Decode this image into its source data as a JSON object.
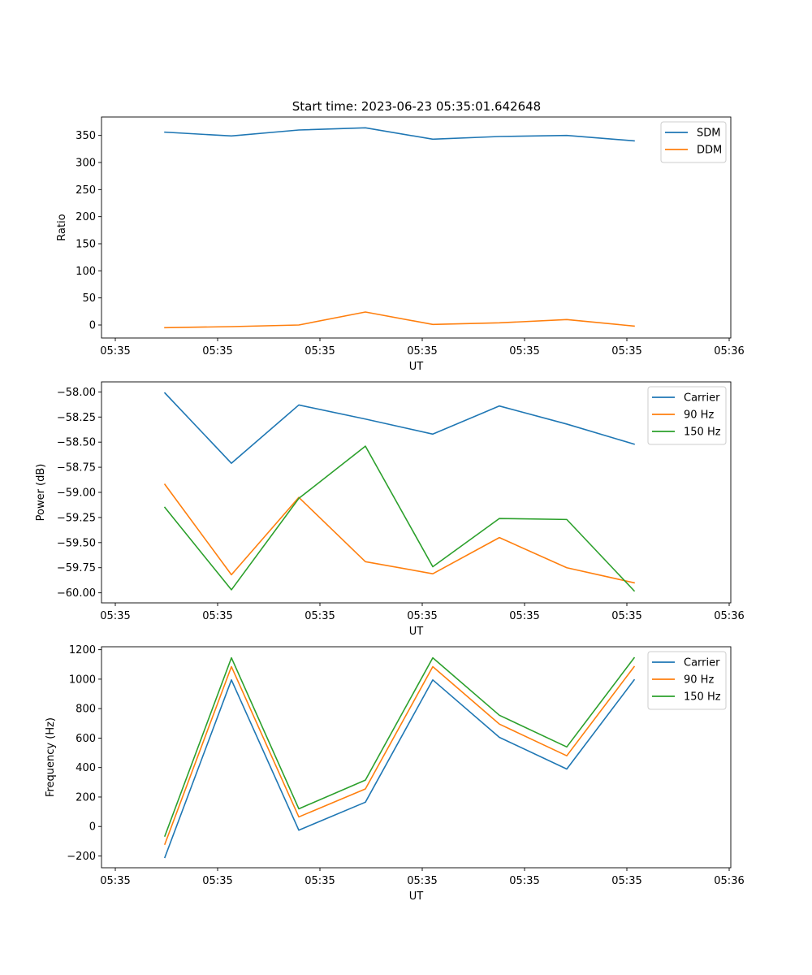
{
  "figure": {
    "title": "Start time: 2023-06-23 05:35:01.642648"
  },
  "chart_data": [
    {
      "type": "line",
      "title": "Start time: 2023-06-23 05:35:01.642648",
      "xlabel": "UT",
      "ylabel": "Ratio",
      "x_tick_labels": [
        "05:35",
        "05:35",
        "05:35",
        "05:35",
        "05:35",
        "05:35",
        "05:36"
      ],
      "y_ticks": [
        0,
        50,
        100,
        150,
        200,
        250,
        300,
        350
      ],
      "ylim": [
        -24,
        384
      ],
      "legend_position": "top-right",
      "grid": false,
      "x": [
        1,
        2,
        3,
        4,
        5,
        6,
        7,
        8
      ],
      "series": [
        {
          "name": "SDM",
          "color": "#1f77b4",
          "values": [
            356,
            349,
            360,
            364,
            343,
            348,
            350,
            340
          ]
        },
        {
          "name": "DDM",
          "color": "#ff7f0e",
          "values": [
            -5,
            -3,
            0,
            24,
            1,
            4,
            10,
            -2
          ]
        }
      ]
    },
    {
      "type": "line",
      "title": "",
      "xlabel": "UT",
      "ylabel": "Power (dB)",
      "x_tick_labels": [
        "05:35",
        "05:35",
        "05:35",
        "05:35",
        "05:35",
        "05:35",
        "05:36"
      ],
      "y_ticks": [
        -60.0,
        -59.75,
        -59.5,
        -59.25,
        -59.0,
        -58.75,
        -58.5,
        -58.25,
        -58.0
      ],
      "y_tick_labels": [
        "−60.00",
        "−59.75",
        "−59.50",
        "−59.25",
        "−59.00",
        "−58.75",
        "−58.50",
        "−58.25",
        "−58.00"
      ],
      "ylim": [
        -60.1,
        -57.9
      ],
      "legend_position": "top-right",
      "grid": false,
      "x": [
        1,
        2,
        3,
        4,
        5,
        6,
        7,
        8
      ],
      "series": [
        {
          "name": "Carrier",
          "color": "#1f77b4",
          "values": [
            -58.01,
            -58.71,
            -58.13,
            -58.27,
            -58.42,
            -58.14,
            -58.32,
            -58.52
          ]
        },
        {
          "name": "90 Hz",
          "color": "#ff7f0e",
          "values": [
            -58.92,
            -59.82,
            -59.05,
            -59.69,
            -59.81,
            -59.45,
            -59.75,
            -59.9
          ]
        },
        {
          "name": "150 Hz",
          "color": "#2ca02c",
          "values": [
            -59.15,
            -59.97,
            -59.06,
            -58.54,
            -59.74,
            -59.26,
            -59.27,
            -59.98
          ]
        }
      ]
    },
    {
      "type": "line",
      "title": "",
      "xlabel": "UT",
      "ylabel": "Frequency (Hz)",
      "x_tick_labels": [
        "05:35",
        "05:35",
        "05:35",
        "05:35",
        "05:35",
        "05:35",
        "05:36"
      ],
      "y_ticks": [
        -200,
        0,
        200,
        400,
        600,
        800,
        1000,
        1200
      ],
      "y_tick_labels": [
        "−200",
        "0",
        "200",
        "400",
        "600",
        "800",
        "1000",
        "1200"
      ],
      "ylim": [
        -280,
        1220
      ],
      "legend_position": "top-right",
      "grid": false,
      "x": [
        1,
        2,
        3,
        4,
        5,
        6,
        7,
        8
      ],
      "series": [
        {
          "name": "Carrier",
          "color": "#1f77b4",
          "values": [
            -210,
            995,
            -25,
            165,
            995,
            605,
            390,
            995
          ]
        },
        {
          "name": "90 Hz",
          "color": "#ff7f0e",
          "values": [
            -120,
            1085,
            65,
            255,
            1085,
            695,
            480,
            1085
          ]
        },
        {
          "name": "150 Hz",
          "color": "#2ca02c",
          "values": [
            -65,
            1145,
            120,
            315,
            1145,
            755,
            540,
            1145
          ]
        }
      ]
    }
  ]
}
